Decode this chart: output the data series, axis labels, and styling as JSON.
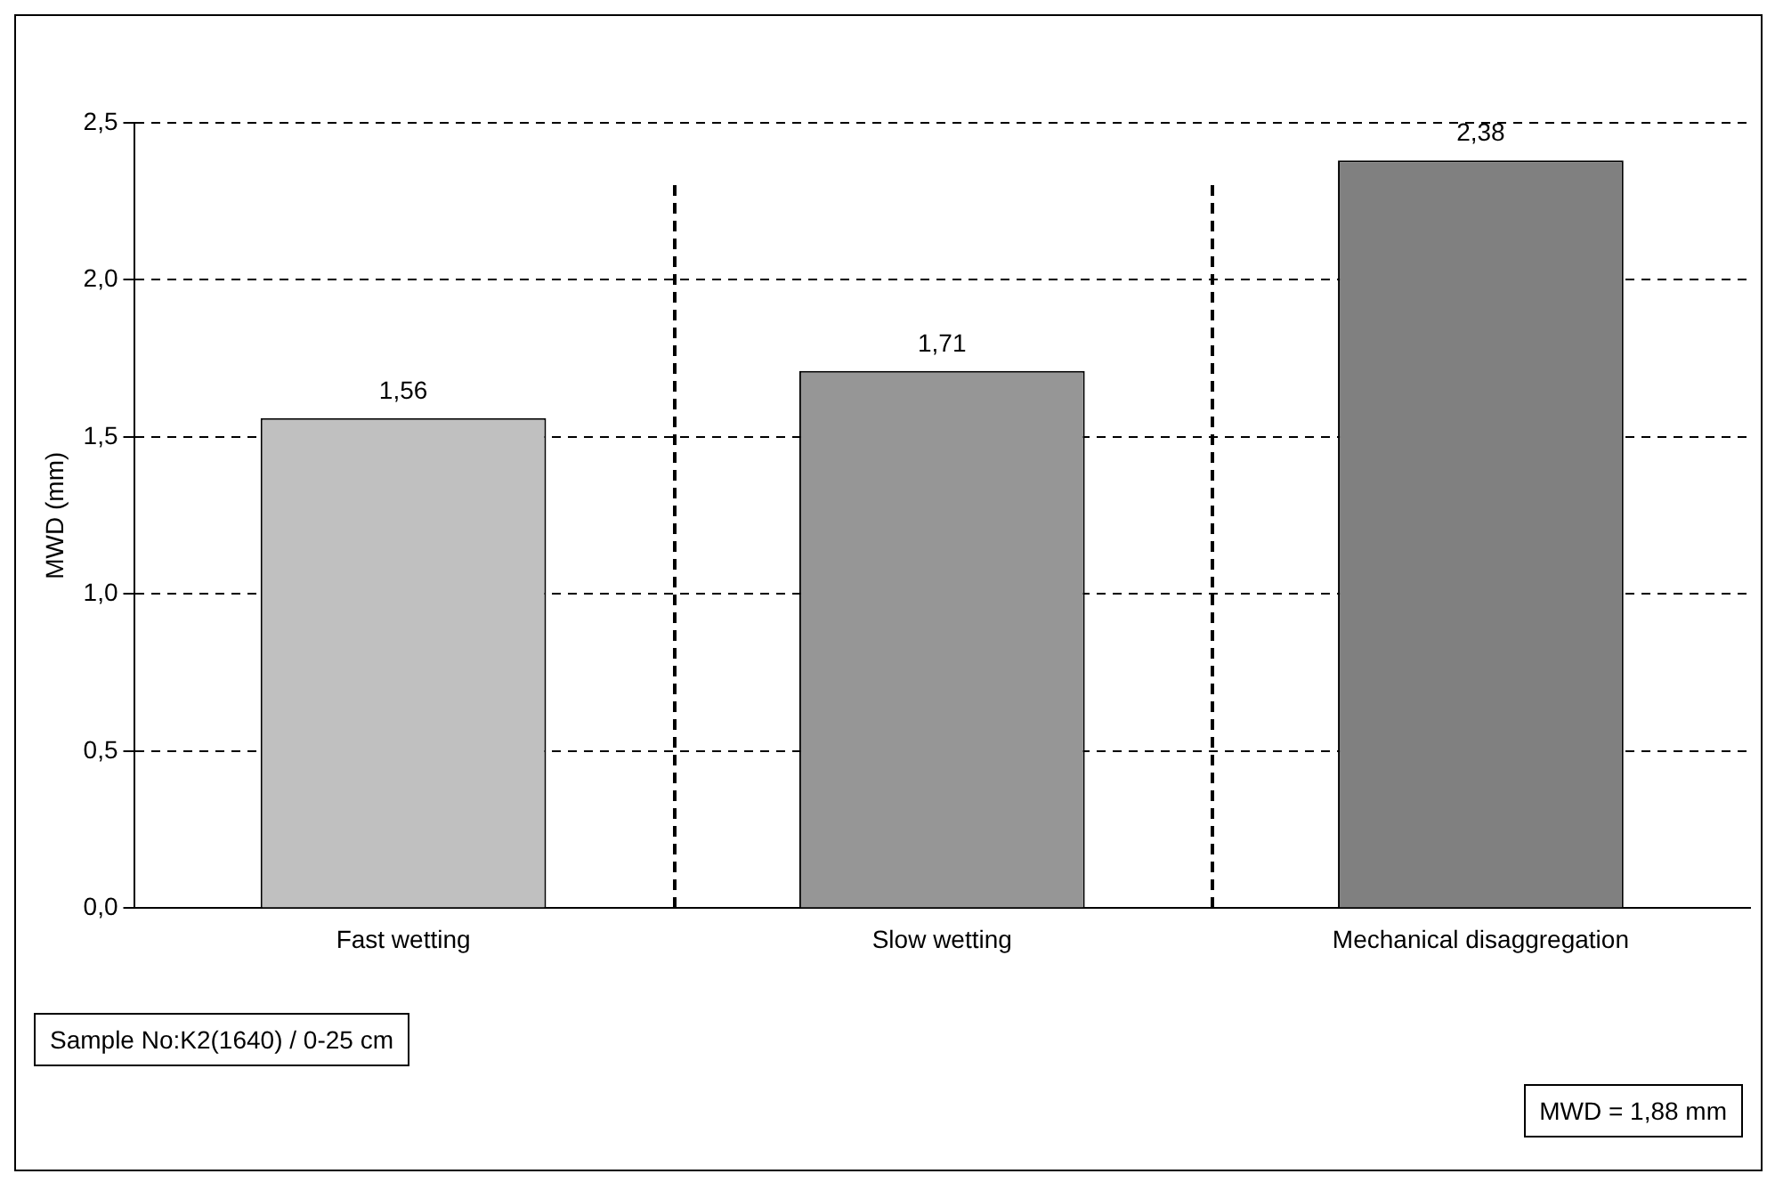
{
  "chart_data": {
    "type": "bar",
    "ylabel": "MWD (mm)",
    "categories": [
      "Fast wetting",
      "Slow wetting",
      "Mechanical disaggregation"
    ],
    "values": [
      1.56,
      1.71,
      2.38
    ],
    "colors": [
      "#c0c0c0",
      "#969696",
      "#808080"
    ],
    "value_labels": [
      "1,56",
      "1,71",
      "2,38"
    ],
    "ylim": [
      0,
      2.5
    ],
    "yticks": [
      {
        "value": 0,
        "label": "0,0"
      },
      {
        "value": 0.5,
        "label": "0,5"
      },
      {
        "value": 1,
        "label": "1,0"
      },
      {
        "value": 1.5,
        "label": "1,5"
      },
      {
        "value": 2,
        "label": "2,0"
      },
      {
        "value": 2.5,
        "label": "2,5"
      }
    ],
    "grid": "y",
    "legend": false,
    "annotations": [
      "Sample No:K2(1640) / 0-25 cm",
      "MWD = 1,88 mm"
    ]
  }
}
